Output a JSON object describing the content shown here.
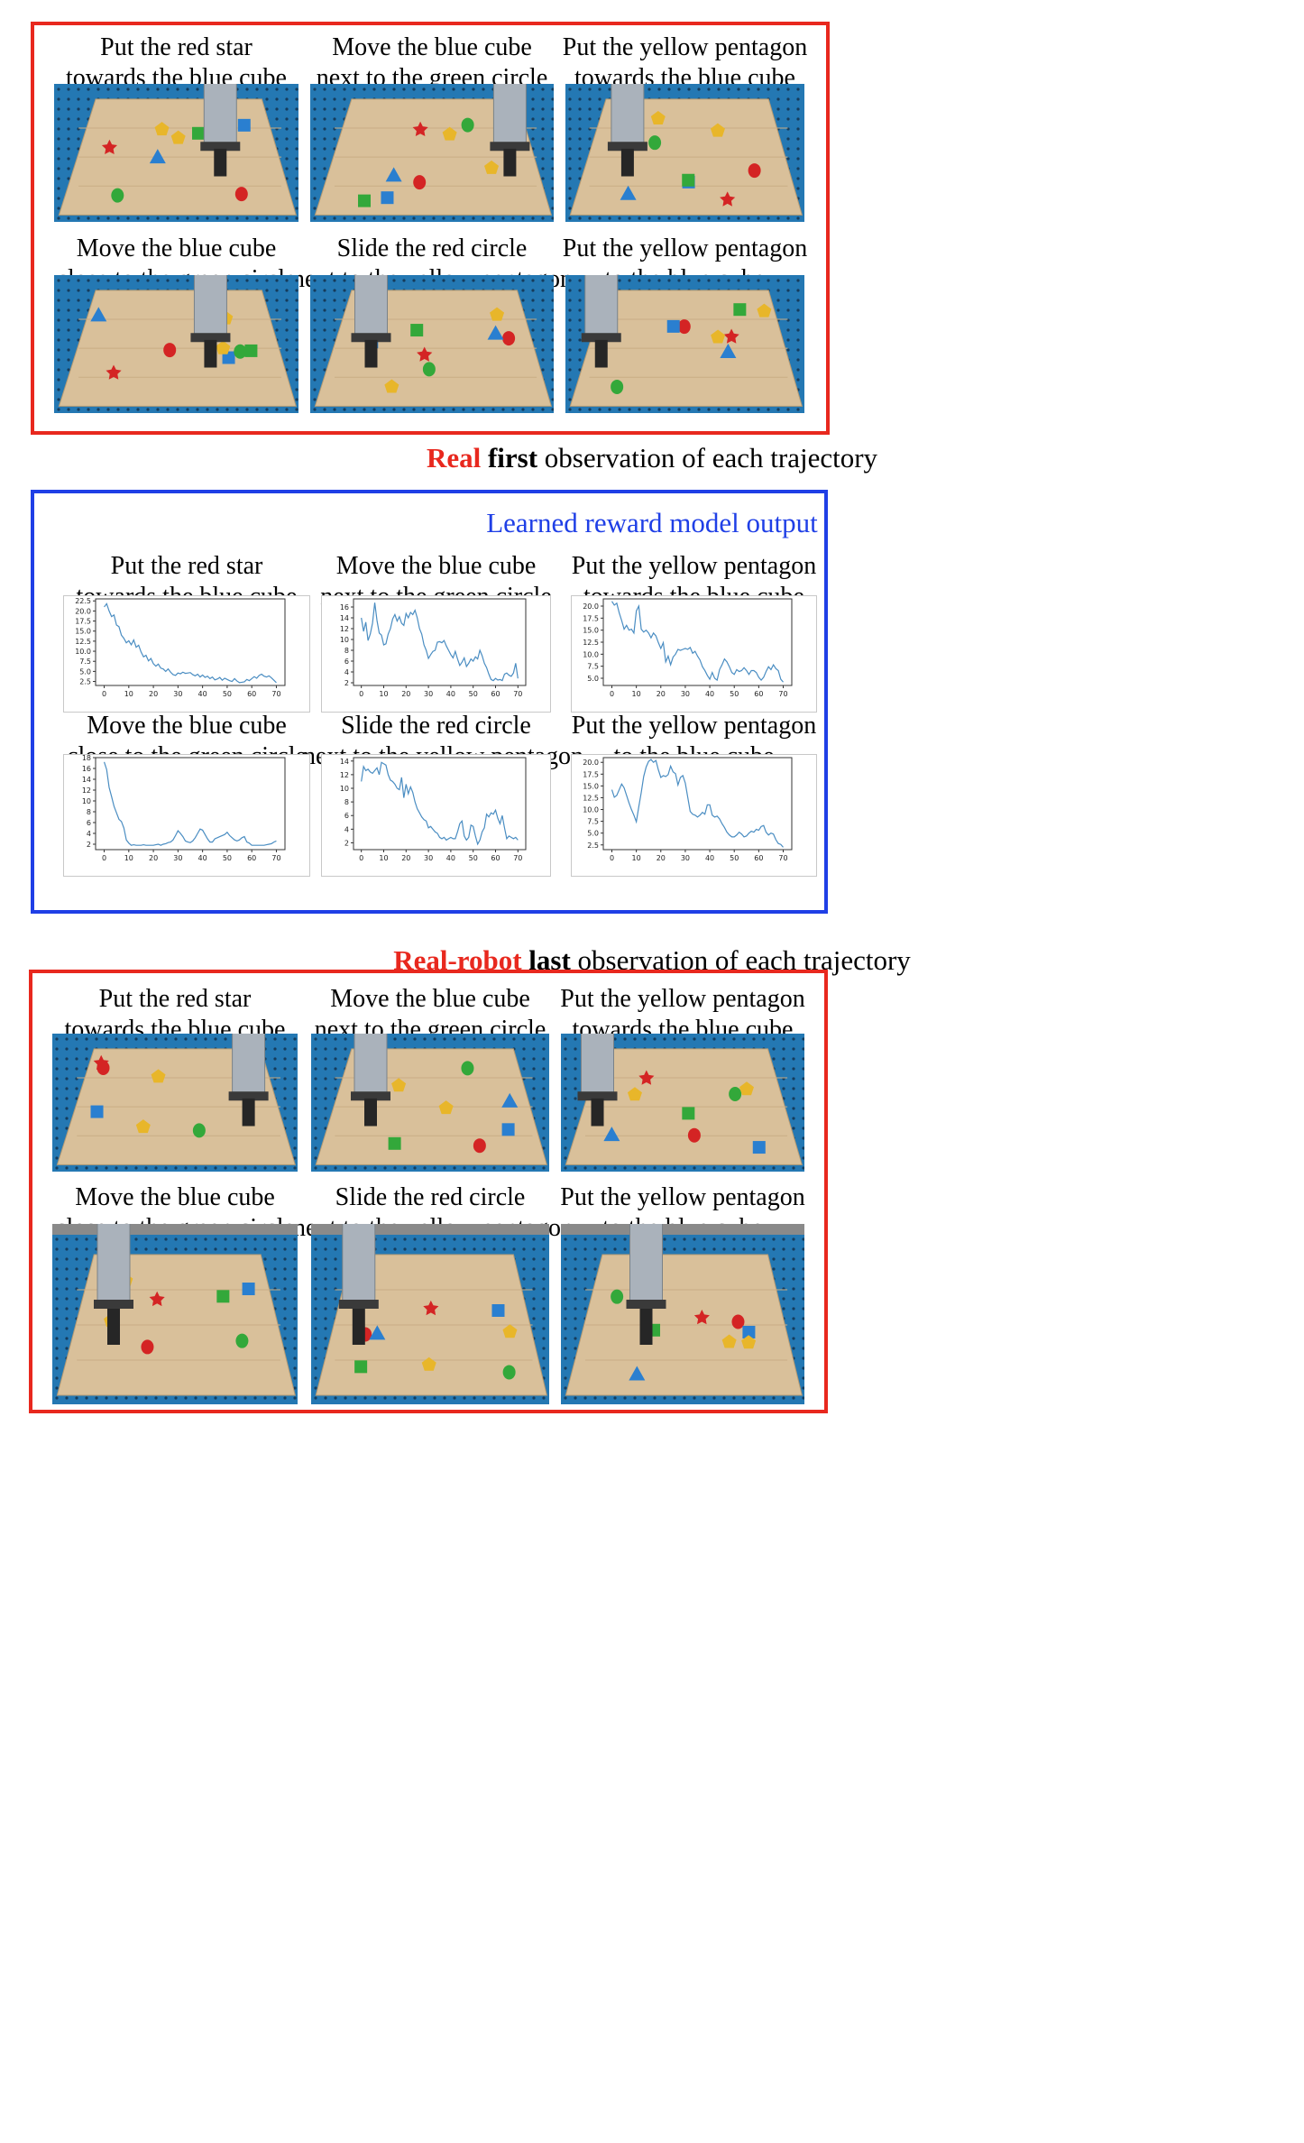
{
  "first_section": {
    "caption_parts": [
      "Real",
      "first",
      "observation of each trajectory"
    ],
    "panels": [
      {
        "line1": "Put the red star",
        "line2": "towards the blue cube"
      },
      {
        "line1": "Move the blue cube",
        "line2": "next to the green circle"
      },
      {
        "line1": "Put the yellow pentagon",
        "line2": "towards the blue cube"
      },
      {
        "line1": "Move the blue cube",
        "line2": "close to the green circle"
      },
      {
        "line1": "Slide the red circle",
        "line2": "next to the yellow pentagon"
      },
      {
        "line1": "Put the yellow pentagon",
        "line2": "to the blue cube"
      }
    ]
  },
  "reward_section": {
    "title": "Learned reward model output",
    "panels": [
      {
        "line1": "Put the red star",
        "line2": "towards the blue cube"
      },
      {
        "line1": "Move the blue cube",
        "line2": "next to the green circle"
      },
      {
        "line1": "Put the yellow pentagon",
        "line2": "towards the blue cube"
      },
      {
        "line1": "Move the blue cube",
        "line2": "close to the green circle"
      },
      {
        "line1": "Slide the red circle",
        "line2": "next to the yellow pentagon"
      },
      {
        "line1": "Put the yellow pentagon",
        "line2": "to the blue cube"
      }
    ]
  },
  "last_section": {
    "caption_parts": [
      "Real-robot",
      "last",
      "observation of each trajectory"
    ],
    "panels": [
      {
        "line1": "Put the red star",
        "line2": "towards the blue cube"
      },
      {
        "line1": "Move the blue cube",
        "line2": "next to the green circle"
      },
      {
        "line1": "Put the yellow pentagon",
        "line2": "towards the blue cube"
      },
      {
        "line1": "Move the blue cube",
        "line2": "close to the green circle"
      },
      {
        "line1": "Slide the red circle",
        "line2": "next to the yellow pentagon"
      },
      {
        "line1": "Put the yellow pentagon",
        "line2": "to the blue cube"
      }
    ]
  },
  "colors": {
    "frame_red": "#e8281e",
    "frame_blue": "#1f3fe6",
    "line_series": "#4a8dc2",
    "table_wood": "#d9c09a",
    "rig_blue": "#2478b3"
  },
  "chart_data": [
    {
      "type": "line",
      "x_step": 1,
      "xticks": [
        0,
        10,
        20,
        30,
        40,
        50,
        60,
        70
      ],
      "ylim": [
        1.5,
        23.0
      ],
      "yticks": [
        2.5,
        5.0,
        7.5,
        10.0,
        12.5,
        15.0,
        17.5,
        20.0,
        22.5
      ],
      "ytick_labels": [
        "2.5",
        "5.0",
        "7.5",
        "10.0",
        "12.5",
        "15.0",
        "17.5",
        "20.0",
        "22.5"
      ],
      "values": [
        21.0,
        21.8,
        20.0,
        18.6,
        19.0,
        16.5,
        16.1,
        14.0,
        13.2,
        12.1,
        12.6,
        11.6,
        12.8,
        11.0,
        11.5,
        9.8,
        8.6,
        9.0,
        7.6,
        8.2,
        6.9,
        6.3,
        6.8,
        5.8,
        5.6,
        5.0,
        5.6,
        4.8,
        4.2,
        4.0,
        4.6,
        4.4,
        4.8,
        4.5,
        4.6,
        4.7,
        4.2,
        3.9,
        4.3,
        3.6,
        4.1,
        3.5,
        3.8,
        3.2,
        3.6,
        2.9,
        3.1,
        3.5,
        2.8,
        3.3,
        3.0,
        2.7,
        2.5,
        3.2,
        2.6,
        2.2,
        2.3,
        2.4,
        3.0,
        2.7,
        3.2,
        3.7,
        3.3,
        4.0,
        4.3,
        3.8,
        3.6,
        3.9,
        3.4,
        2.8,
        2.2
      ]
    },
    {
      "type": "line",
      "x_step": 1,
      "xticks": [
        0,
        10,
        20,
        30,
        40,
        50,
        60,
        70
      ],
      "ylim": [
        1.5,
        17.5
      ],
      "yticks": [
        2,
        4,
        6,
        8,
        10,
        12,
        14,
        16
      ],
      "ytick_labels": [
        "2",
        "4",
        "6",
        "8",
        "10",
        "12",
        "14",
        "16"
      ],
      "values": [
        14.0,
        11.5,
        13.2,
        9.8,
        11.0,
        13.0,
        16.8,
        13.5,
        11.2,
        10.8,
        9.0,
        9.2,
        11.0,
        12.0,
        13.8,
        14.6,
        13.4,
        14.2,
        13.0,
        12.6,
        14.8,
        14.0,
        15.0,
        14.6,
        15.4,
        14.0,
        12.0,
        11.0,
        9.0,
        8.0,
        6.5,
        7.2,
        7.8,
        8.0,
        9.5,
        9.6,
        9.4,
        9.8,
        8.8,
        8.0,
        7.2,
        6.6,
        7.8,
        6.4,
        5.2,
        5.8,
        6.6,
        5.0,
        5.6,
        6.4,
        6.0,
        6.8,
        6.4,
        8.0,
        7.0,
        5.6,
        4.8,
        3.6,
        2.6,
        2.4,
        2.8,
        2.5,
        2.6,
        2.4,
        3.6,
        3.8,
        3.4,
        3.2,
        3.8,
        5.6,
        2.8
      ]
    },
    {
      "type": "line",
      "x_step": 1,
      "xticks": [
        0,
        10,
        20,
        30,
        40,
        50,
        60,
        70
      ],
      "ylim": [
        3.5,
        21.5
      ],
      "yticks": [
        5.0,
        7.5,
        10.0,
        12.5,
        15.0,
        17.5,
        20.0
      ],
      "ytick_labels": [
        "5.0",
        "7.5",
        "10.0",
        "12.5",
        "15.0",
        "17.5",
        "20.0"
      ],
      "values": [
        21.0,
        20.2,
        20.6,
        18.6,
        17.0,
        15.2,
        16.0,
        15.0,
        15.2,
        14.4,
        19.0,
        20.0,
        15.2,
        14.6,
        15.0,
        14.4,
        13.4,
        14.4,
        13.8,
        12.4,
        11.2,
        12.4,
        8.4,
        9.6,
        7.8,
        9.4,
        10.0,
        11.0,
        10.8,
        11.0,
        11.2,
        11.0,
        11.4,
        10.2,
        10.6,
        9.6,
        8.8,
        7.4,
        6.6,
        5.6,
        4.8,
        6.2,
        5.0,
        4.6,
        6.8,
        7.8,
        9.0,
        8.4,
        7.4,
        6.2,
        5.8,
        6.8,
        6.4,
        6.6,
        7.2,
        6.6,
        5.8,
        6.6,
        6.6,
        6.2,
        5.2,
        4.6,
        5.2,
        6.4,
        7.4,
        6.8,
        7.8,
        7.0,
        6.6,
        4.8,
        4.2
      ]
    },
    {
      "type": "line",
      "x_step": 1,
      "xticks": [
        0,
        10,
        20,
        30,
        40,
        50,
        60,
        70
      ],
      "ylim": [
        1.0,
        18.0
      ],
      "yticks": [
        2,
        4,
        6,
        8,
        10,
        12,
        14,
        16,
        18
      ],
      "ytick_labels": [
        "2",
        "4",
        "6",
        "8",
        "10",
        "12",
        "14",
        "16",
        "18"
      ],
      "values": [
        17.2,
        15.8,
        12.5,
        10.8,
        9.0,
        7.8,
        6.6,
        6.2,
        5.0,
        2.8,
        2.2,
        1.8,
        1.9,
        1.8,
        1.8,
        1.8,
        1.9,
        1.8,
        1.8,
        1.8,
        1.8,
        1.9,
        2.0,
        1.8,
        2.0,
        2.1,
        2.3,
        2.4,
        2.8,
        3.6,
        4.5,
        4.0,
        3.4,
        2.6,
        2.4,
        2.3,
        2.6,
        3.2,
        4.0,
        4.8,
        4.6,
        3.8,
        3.0,
        2.4,
        2.4,
        3.0,
        3.2,
        3.4,
        3.6,
        3.8,
        4.2,
        3.6,
        3.2,
        2.8,
        2.6,
        2.8,
        3.2,
        3.4,
        2.4,
        2.2,
        1.8,
        1.8,
        1.8,
        1.8,
        1.8,
        1.8,
        1.9,
        2.0,
        2.1,
        2.4,
        2.6
      ]
    },
    {
      "type": "line",
      "x_step": 1,
      "xticks": [
        0,
        10,
        20,
        30,
        40,
        50,
        60,
        70
      ],
      "ylim": [
        1.0,
        14.5
      ],
      "yticks": [
        2,
        4,
        6,
        8,
        10,
        12,
        14
      ],
      "ytick_labels": [
        "2",
        "4",
        "6",
        "8",
        "10",
        "12",
        "14"
      ],
      "values": [
        11.0,
        13.2,
        12.6,
        12.8,
        12.4,
        12.2,
        12.6,
        13.0,
        12.0,
        13.8,
        13.6,
        13.4,
        12.0,
        11.2,
        11.0,
        10.6,
        10.0,
        9.8,
        11.6,
        8.6,
        10.6,
        9.2,
        10.2,
        9.4,
        8.0,
        7.0,
        6.4,
        5.8,
        5.4,
        5.2,
        4.2,
        4.4,
        4.0,
        3.6,
        3.4,
        2.8,
        2.6,
        2.8,
        2.4,
        2.6,
        2.8,
        2.6,
        2.6,
        3.6,
        4.8,
        5.2,
        3.0,
        2.4,
        2.8,
        4.6,
        4.4,
        3.0,
        1.8,
        2.4,
        3.6,
        4.2,
        6.2,
        5.8,
        6.4,
        6.2,
        6.8,
        5.6,
        4.8,
        6.0,
        4.2,
        2.6,
        3.0,
        2.8,
        2.6,
        2.8,
        2.4
      ]
    },
    {
      "type": "line",
      "x_step": 1,
      "xticks": [
        0,
        10,
        20,
        30,
        40,
        50,
        60,
        70
      ],
      "ylim": [
        1.5,
        21.0
      ],
      "yticks": [
        2.5,
        5.0,
        7.5,
        10.0,
        12.5,
        15.0,
        17.5,
        20.0
      ],
      "ytick_labels": [
        "2.5",
        "5.0",
        "7.5",
        "10.0",
        "12.5",
        "15.0",
        "17.5",
        "20.0"
      ],
      "values": [
        14.2,
        12.6,
        13.0,
        14.2,
        15.4,
        14.6,
        13.0,
        11.4,
        10.0,
        8.8,
        7.4,
        10.6,
        13.6,
        17.0,
        19.0,
        20.2,
        20.6,
        20.0,
        20.4,
        18.4,
        16.8,
        17.2,
        17.0,
        17.4,
        19.2,
        18.0,
        17.6,
        15.2,
        16.8,
        17.2,
        15.6,
        12.6,
        9.6,
        9.0,
        8.8,
        8.4,
        8.8,
        9.4,
        9.0,
        11.0,
        11.0,
        8.8,
        8.4,
        8.6,
        8.0,
        7.0,
        6.2,
        5.2,
        4.6,
        4.2,
        4.2,
        4.6,
        5.2,
        4.8,
        4.2,
        4.4,
        5.0,
        5.4,
        5.2,
        5.8,
        5.6,
        6.4,
        6.6,
        5.2,
        4.6,
        5.0,
        4.8,
        3.6,
        2.8,
        2.6,
        2.0
      ]
    }
  ]
}
